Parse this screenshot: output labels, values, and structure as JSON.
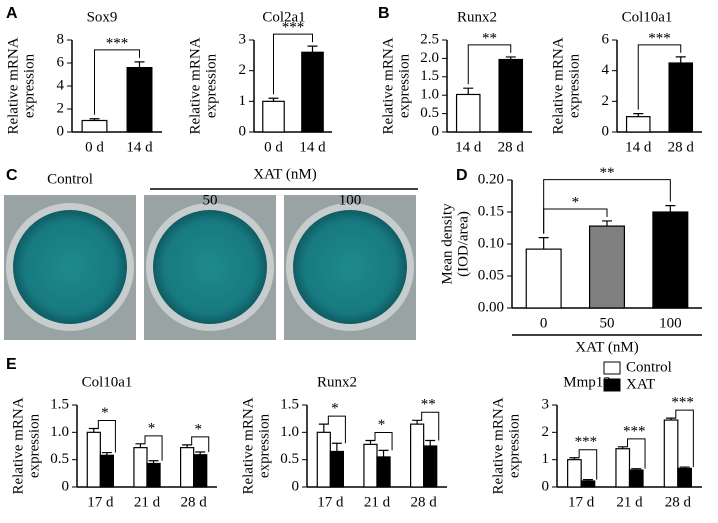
{
  "chart_data": [
    {
      "type": "bar",
      "panel": "A",
      "title": "Sox9",
      "ylabel": [
        "Relative mRNA",
        "expression"
      ],
      "categories": [
        "0 d",
        "14 d"
      ],
      "values": [
        1.0,
        5.6
      ],
      "errors": [
        0.15,
        0.5
      ],
      "colors": [
        "#ffffff",
        "#000000"
      ],
      "ylim": [
        0,
        8
      ],
      "yticks": [
        0,
        2,
        4,
        6,
        8
      ],
      "annotations": [
        "***"
      ]
    },
    {
      "type": "bar",
      "title": "Col2a1",
      "ylabel": [
        "Relative mRNA",
        "expression"
      ],
      "categories": [
        "0 d",
        "14 d"
      ],
      "values": [
        1.0,
        2.6
      ],
      "errors": [
        0.1,
        0.2
      ],
      "colors": [
        "#ffffff",
        "#000000"
      ],
      "ylim": [
        0,
        3
      ],
      "yticks": [
        0,
        1,
        2,
        3
      ],
      "annotations": [
        "***"
      ]
    },
    {
      "type": "bar",
      "panel": "B",
      "title": "Runx2",
      "ylabel": [
        "Relative mRNA",
        "expression"
      ],
      "categories": [
        "14 d",
        "28 d"
      ],
      "values": [
        1.02,
        1.97
      ],
      "errors": [
        0.17,
        0.07
      ],
      "colors": [
        "#ffffff",
        "#000000"
      ],
      "ylim": [
        0,
        2.5
      ],
      "yticks": [
        0,
        0.5,
        {
          "value": 1,
          "label": "1.0"
        },
        1.5,
        {
          "value": 2,
          "label": "2.0"
        },
        2.5
      ],
      "annotations": [
        "**"
      ]
    },
    {
      "type": "bar",
      "title": "Col10a1",
      "ylabel": [
        "Relative mRNA",
        "expression"
      ],
      "categories": [
        "14 d",
        "28 d"
      ],
      "values": [
        1.0,
        4.5
      ],
      "errors": [
        0.2,
        0.4
      ],
      "colors": [
        "#ffffff",
        "#000000"
      ],
      "ylim": [
        0,
        6
      ],
      "yticks": [
        0,
        2,
        4,
        6
      ],
      "annotations": [
        "***"
      ]
    },
    {
      "type": "bar",
      "panel": "D",
      "ylabel": [
        "Mean density",
        "(IOD/area)"
      ],
      "xlabel": "XAT (nM)",
      "categories": [
        "0",
        "50",
        "100"
      ],
      "values": [
        0.092,
        0.128,
        0.15
      ],
      "errors": [
        0.018,
        0.008,
        0.01
      ],
      "colors": [
        "#ffffff",
        "#808080",
        "#000000"
      ],
      "ylim": [
        0,
        0.2
      ],
      "yticks": [
        {
          "value": 0,
          "label": "0.00"
        },
        {
          "value": 0.05,
          "label": "0.05"
        },
        {
          "value": 0.1,
          "label": "0.10"
        },
        {
          "value": 0.15,
          "label": "0.15"
        },
        {
          "value": 0.2,
          "label": "0.20"
        }
      ],
      "annotations": [
        "*",
        "**"
      ]
    },
    {
      "type": "grouped-bar",
      "panel": "E",
      "title": "Col10a1",
      "ylabel": [
        "Relative mRNA",
        "expression"
      ],
      "categories": [
        "17 d",
        "21 d",
        "28 d"
      ],
      "series": [
        {
          "name": "Control",
          "color": "#ffffff",
          "values": [
            1.0,
            0.72,
            0.72
          ],
          "errors": [
            0.07,
            0.07,
            0.05
          ]
        },
        {
          "name": "XAT",
          "color": "#000000",
          "values": [
            0.58,
            0.43,
            0.59
          ],
          "errors": [
            0.05,
            0.05,
            0.05
          ]
        }
      ],
      "ylim": [
        0,
        1.5
      ],
      "yticks": [
        0,
        0.5,
        {
          "value": 1,
          "label": "1.0"
        },
        1.5
      ],
      "annotations": [
        "*",
        "*",
        "*"
      ]
    },
    {
      "type": "grouped-bar",
      "title": "Runx2",
      "ylabel": [
        "Relative mRNA",
        "expression"
      ],
      "categories": [
        "17 d",
        "21 d",
        "28 d"
      ],
      "series": [
        {
          "name": "Control",
          "color": "#ffffff",
          "values": [
            1.0,
            0.78,
            1.15
          ],
          "errors": [
            0.15,
            0.07,
            0.07
          ]
        },
        {
          "name": "XAT",
          "color": "#000000",
          "values": [
            0.65,
            0.55,
            0.75
          ],
          "errors": [
            0.15,
            0.12,
            0.1
          ]
        }
      ],
      "ylim": [
        0,
        1.5
      ],
      "yticks": [
        0,
        0.5,
        {
          "value": 1,
          "label": "1.0"
        },
        1.5
      ],
      "annotations": [
        "*",
        "*",
        "**"
      ]
    },
    {
      "type": "grouped-bar",
      "title": "Mmp13",
      "ylabel": [
        "Relative mRNA",
        "expression"
      ],
      "categories": [
        "17 d",
        "21 d",
        "28 d"
      ],
      "series": [
        {
          "name": "Control",
          "color": "#ffffff",
          "values": [
            1.0,
            1.4,
            2.45
          ],
          "errors": [
            0.07,
            0.07,
            0.07
          ]
        },
        {
          "name": "XAT",
          "color": "#000000",
          "values": [
            0.22,
            0.62,
            0.68
          ],
          "errors": [
            0.05,
            0.05,
            0.05
          ]
        }
      ],
      "ylim": [
        0,
        3
      ],
      "yticks": [
        0,
        1,
        2,
        3
      ],
      "annotations": [
        "***",
        "***",
        "***"
      ],
      "legend": "top-right"
    }
  ],
  "figure_c": {
    "panel": "C",
    "labels": [
      "Control",
      "50",
      "100"
    ],
    "group": "XAT (nM)"
  }
}
